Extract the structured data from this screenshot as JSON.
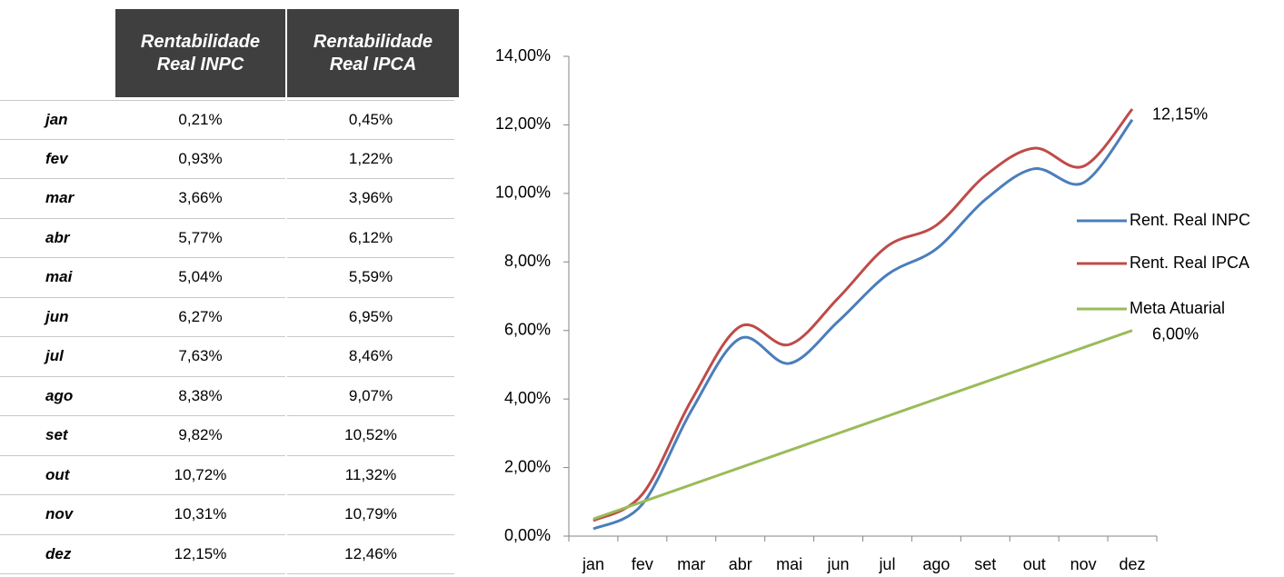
{
  "table": {
    "headers": [
      "Rentabilidade Real INPC",
      "Rentabilidade Real IPCA"
    ],
    "rows": [
      [
        "jan",
        "0,21%",
        "0,45%"
      ],
      [
        "fev",
        "0,93%",
        "1,22%"
      ],
      [
        "mar",
        "3,66%",
        "3,96%"
      ],
      [
        "abr",
        "5,77%",
        "6,12%"
      ],
      [
        "mai",
        "5,04%",
        "5,59%"
      ],
      [
        "jun",
        "6,27%",
        "6,95%"
      ],
      [
        "jul",
        "7,63%",
        "8,46%"
      ],
      [
        "ago",
        "8,38%",
        "9,07%"
      ],
      [
        "set",
        "9,82%",
        "10,52%"
      ],
      [
        "out",
        "10,72%",
        "11,32%"
      ],
      [
        "nov",
        "10,31%",
        "10,79%"
      ],
      [
        "dez",
        "12,15%",
        "12,46%"
      ]
    ]
  },
  "chart_data": {
    "type": "line",
    "categories": [
      "jan",
      "fev",
      "mar",
      "abr",
      "mai",
      "jun",
      "jul",
      "ago",
      "set",
      "out",
      "nov",
      "dez"
    ],
    "series": [
      {
        "name": "Rent. Real INPC",
        "color": "#4a7ebb",
        "values": [
          0.21,
          0.93,
          3.66,
          5.77,
          5.04,
          6.27,
          7.63,
          8.38,
          9.82,
          10.72,
          10.31,
          12.15
        ],
        "value_labels": [
          null,
          null,
          null,
          null,
          null,
          null,
          null,
          null,
          null,
          null,
          null,
          "12,15%"
        ]
      },
      {
        "name": "Rent. Real IPCA",
        "color": "#be4b48",
        "values": [
          0.45,
          1.22,
          3.96,
          6.12,
          5.59,
          6.95,
          8.46,
          9.07,
          10.52,
          11.32,
          10.79,
          12.46
        ]
      },
      {
        "name": "Meta Atuarial",
        "color": "#9bbb59",
        "values": [
          0.5,
          1.0,
          1.5,
          2.0,
          2.5,
          3.0,
          3.5,
          4.0,
          4.5,
          5.0,
          5.5,
          6.0
        ],
        "value_labels": [
          null,
          null,
          null,
          null,
          null,
          null,
          null,
          null,
          null,
          null,
          null,
          "6,00%"
        ]
      }
    ],
    "ylim": [
      0,
      14
    ],
    "yticks": [
      {
        "value": 0,
        "label": "0,00%"
      },
      {
        "value": 2,
        "label": "2,00%"
      },
      {
        "value": 4,
        "label": "4,00%"
      },
      {
        "value": 6,
        "label": "6,00%"
      },
      {
        "value": 8,
        "label": "8,00%"
      },
      {
        "value": 10,
        "label": "10,00%"
      },
      {
        "value": 12,
        "label": "12,00%"
      },
      {
        "value": 14,
        "label": "14,00%"
      }
    ],
    "legend": "right"
  }
}
